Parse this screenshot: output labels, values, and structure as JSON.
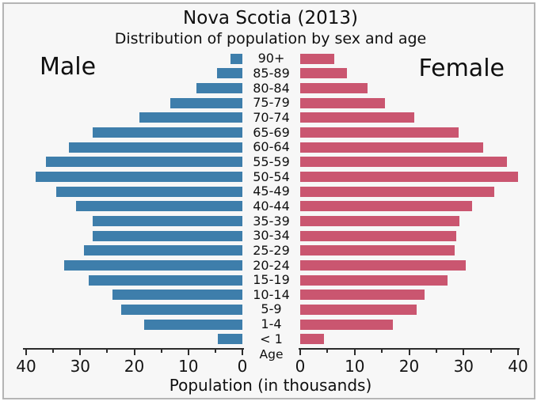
{
  "chart": {
    "title": "Nova Scotia (2013)",
    "subtitle": "Distribution of population by sex and age",
    "male_label": "Male",
    "female_label": "Female",
    "age_axis_label": "Age",
    "x_axis_label": "Population (in thousands)"
  },
  "colors": {
    "male_bar": "#3e7eab",
    "female_bar": "#ca5670",
    "background": "#f7f7f7",
    "frame_border": "#b5b5b5",
    "axis": "#2b2b2b",
    "text": "#0f0f0f"
  },
  "chart_data": {
    "type": "bar",
    "subtype": "population-pyramid",
    "title": "Nova Scotia (2013)",
    "subtitle": "Distribution of population by sex and age",
    "xlabel": "Population (in thousands)",
    "center_axis_label": "Age",
    "categories": [
      "90+",
      "85-89",
      "80-84",
      "75-79",
      "70-74",
      "65-69",
      "60-64",
      "55-59",
      "50-54",
      "45-49",
      "40-44",
      "35-39",
      "30-34",
      "25-29",
      "20-24",
      "15-19",
      "10-14",
      "5-9",
      "1-4",
      "< 1"
    ],
    "series": [
      {
        "name": "Male",
        "side": "left",
        "color": "#3e7eab",
        "values": [
          2.2,
          4.7,
          8.5,
          13.3,
          19.0,
          27.7,
          32.1,
          36.3,
          38.2,
          34.4,
          30.8,
          27.7,
          27.7,
          29.3,
          33.0,
          28.4,
          24.0,
          22.4,
          18.2,
          4.5
        ]
      },
      {
        "name": "Female",
        "side": "right",
        "color": "#ca5670",
        "values": [
          6.3,
          8.6,
          12.4,
          15.5,
          21.0,
          29.1,
          33.6,
          38.0,
          40.0,
          35.6,
          31.6,
          29.2,
          28.7,
          28.3,
          30.4,
          27.1,
          22.8,
          21.4,
          17.0,
          4.4
        ]
      }
    ],
    "xlim_each_side": [
      0,
      40
    ],
    "major_ticks": [
      0,
      10,
      20,
      30,
      40
    ],
    "minor_ticks": [
      5,
      15,
      25,
      35
    ],
    "left_axis_tick_labels": [
      "40",
      "30",
      "20",
      "10",
      "0"
    ],
    "right_axis_tick_labels": [
      "0",
      "10",
      "20",
      "30",
      "40"
    ],
    "grid": false,
    "legend_position": "none",
    "units": "thousands of people"
  }
}
